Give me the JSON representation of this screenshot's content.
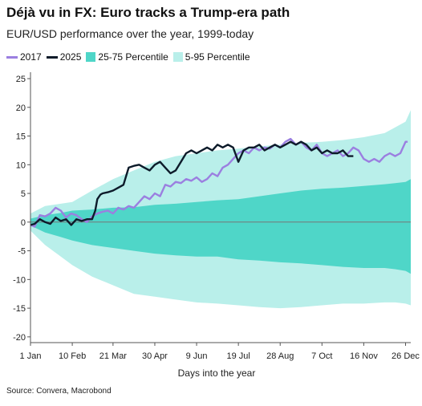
{
  "header": {
    "title": "Déjà vu in FX: Euro tracks a Trump-era path",
    "subtitle": "EUR/USD performance over the year, 1999-today"
  },
  "legend": {
    "items": [
      {
        "label": "2017",
        "kind": "line",
        "color": "#9b7fe0"
      },
      {
        "label": "2025",
        "kind": "line",
        "color": "#0d1b2a"
      },
      {
        "label": "25-75 Percentile",
        "kind": "band",
        "color": "#4fd6c8"
      },
      {
        "label": "5-95 Percentile",
        "kind": "band",
        "color": "#b9efea"
      }
    ]
  },
  "source": "Source: Convera, Macrobond",
  "chart_data": {
    "type": "line",
    "title": "Déjà vu in FX: Euro tracks a Trump-era path",
    "subtitle": "EUR/USD performance over the year, 1999-today",
    "xlabel": "Days into the year",
    "ylabel": "",
    "xlim": [
      1,
      365
    ],
    "ylim": [
      -21,
      25
    ],
    "x_ticks": [
      {
        "label": "1 Jan",
        "day": 1
      },
      {
        "label": "10 Feb",
        "day": 41
      },
      {
        "label": "21 Mar",
        "day": 80
      },
      {
        "label": "30 Apr",
        "day": 120
      },
      {
        "label": "9 Jun",
        "day": 160
      },
      {
        "label": "19 Jul",
        "day": 200
      },
      {
        "label": "28 Aug",
        "day": 240
      },
      {
        "label": "7 Oct",
        "day": 280
      },
      {
        "label": "16 Nov",
        "day": 320
      },
      {
        "label": "26 Dec",
        "day": 360
      }
    ],
    "y_ticks": [
      25,
      20,
      15,
      10,
      5,
      0,
      -5,
      -10,
      -15,
      -20
    ],
    "zero_line": true,
    "legend_position": "top",
    "bands": [
      {
        "name": "5-95 Percentile",
        "color": "#b9efea",
        "x": [
          1,
          15,
          30,
          41,
          60,
          80,
          100,
          120,
          140,
          160,
          180,
          200,
          220,
          240,
          260,
          280,
          300,
          320,
          340,
          350,
          360,
          365
        ],
        "upper": [
          1.5,
          2.8,
          3.2,
          3.5,
          5.5,
          7.5,
          9.0,
          10.5,
          11.5,
          12.0,
          12.5,
          12.8,
          13.2,
          13.5,
          13.8,
          14.0,
          14.3,
          14.8,
          15.5,
          16.5,
          17.5,
          19.5
        ],
        "lower": [
          -1.5,
          -4.0,
          -6.0,
          -7.5,
          -9.5,
          -11.0,
          -12.5,
          -13.0,
          -13.5,
          -14.0,
          -14.2,
          -14.5,
          -14.8,
          -15.0,
          -14.8,
          -14.5,
          -14.2,
          -14.2,
          -14.0,
          -14.0,
          -14.2,
          -14.5
        ]
      },
      {
        "name": "25-75 Percentile",
        "color": "#4fd6c8",
        "x": [
          1,
          15,
          30,
          41,
          60,
          80,
          100,
          120,
          140,
          160,
          180,
          200,
          220,
          240,
          260,
          280,
          300,
          320,
          340,
          350,
          360,
          365
        ],
        "upper": [
          0.6,
          1.2,
          1.6,
          2.0,
          2.2,
          2.5,
          2.6,
          3.0,
          3.2,
          3.5,
          3.8,
          4.0,
          4.5,
          5.0,
          5.5,
          5.8,
          6.0,
          6.3,
          6.6,
          6.8,
          7.0,
          7.5
        ],
        "lower": [
          -0.6,
          -1.8,
          -2.6,
          -3.2,
          -4.0,
          -4.5,
          -5.0,
          -5.5,
          -5.8,
          -6.0,
          -6.0,
          -6.5,
          -6.7,
          -7.0,
          -7.2,
          -7.5,
          -7.8,
          -8.0,
          -8.0,
          -8.2,
          -8.5,
          -9.0
        ]
      }
    ],
    "series": [
      {
        "name": "2017",
        "color": "#9b7fe0",
        "x": [
          1,
          5,
          10,
          15,
          20,
          25,
          30,
          35,
          40,
          45,
          50,
          55,
          60,
          65,
          70,
          75,
          80,
          85,
          90,
          95,
          100,
          105,
          110,
          115,
          120,
          125,
          130,
          135,
          140,
          145,
          150,
          155,
          160,
          165,
          170,
          175,
          180,
          185,
          190,
          195,
          200,
          205,
          210,
          215,
          220,
          225,
          230,
          235,
          240,
          245,
          250,
          255,
          260,
          265,
          270,
          275,
          280,
          285,
          290,
          295,
          300,
          305,
          310,
          315,
          320,
          325,
          330,
          335,
          340,
          345,
          350,
          355,
          360,
          362
        ],
        "y": [
          -0.5,
          -0.8,
          1.2,
          1.0,
          1.5,
          2.5,
          2.0,
          0.8,
          1.5,
          1.2,
          0.5,
          0.0,
          1.0,
          1.5,
          1.8,
          2.0,
          1.5,
          2.5,
          2.2,
          2.8,
          2.5,
          3.5,
          4.5,
          4.0,
          5.0,
          4.5,
          6.5,
          6.2,
          7.0,
          6.8,
          7.5,
          7.2,
          7.8,
          7.0,
          7.5,
          8.5,
          8.0,
          9.5,
          10.0,
          11.0,
          12.0,
          12.5,
          12.0,
          13.0,
          12.5,
          13.0,
          12.8,
          13.5,
          13.0,
          14.0,
          14.5,
          13.5,
          14.0,
          13.0,
          12.5,
          13.5,
          12.0,
          11.5,
          12.0,
          12.5,
          11.5,
          12.0,
          13.0,
          12.5,
          11.0,
          10.5,
          11.0,
          10.5,
          11.5,
          12.0,
          11.5,
          12.0,
          14.0,
          14.0
        ]
      },
      {
        "name": "2025",
        "color": "#0d1b2a",
        "x": [
          1,
          5,
          10,
          15,
          20,
          25,
          30,
          35,
          40,
          45,
          50,
          55,
          60,
          63,
          65,
          68,
          70,
          75,
          80,
          85,
          90,
          95,
          100,
          105,
          110,
          115,
          120,
          125,
          130,
          135,
          140,
          145,
          150,
          155,
          160,
          165,
          170,
          175,
          180,
          185,
          190,
          195,
          200,
          205,
          210,
          215,
          220,
          225,
          230,
          235,
          240,
          245,
          250,
          255,
          260,
          265,
          270,
          275,
          280,
          285,
          290,
          295,
          300,
          305,
          310
        ],
        "y": [
          -0.5,
          -0.3,
          0.5,
          0.0,
          -0.3,
          0.8,
          0.2,
          0.5,
          -0.5,
          0.5,
          0.2,
          0.5,
          0.5,
          2.0,
          4.0,
          4.8,
          5.0,
          5.2,
          5.5,
          6.0,
          6.5,
          9.5,
          9.8,
          10.0,
          9.5,
          9.0,
          10.0,
          10.5,
          9.5,
          8.5,
          9.0,
          10.5,
          12.0,
          12.5,
          12.0,
          12.5,
          13.0,
          12.5,
          13.5,
          13.0,
          13.5,
          13.0,
          10.5,
          12.5,
          13.0,
          13.0,
          13.5,
          12.5,
          13.0,
          13.5,
          13.0,
          13.5,
          14.0,
          13.5,
          14.0,
          13.5,
          12.5,
          13.0,
          12.0,
          12.5,
          12.0,
          12.0,
          12.5,
          11.5,
          11.5
        ]
      }
    ]
  }
}
